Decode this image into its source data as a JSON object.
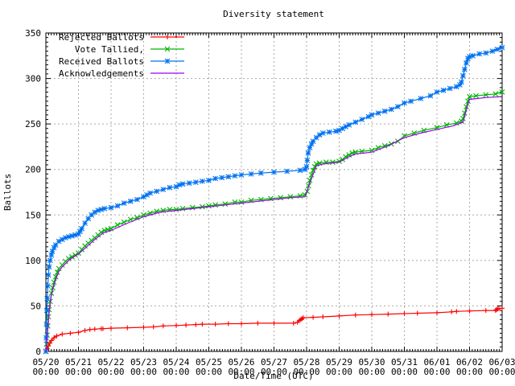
{
  "title": "Diversity statement",
  "chart_data": {
    "type": "line",
    "title": "Diversity statement",
    "xlabel": "Date/Time (UTC)",
    "ylabel": "Ballots",
    "ylim": [
      0,
      350
    ],
    "y_ticks": [
      0,
      50,
      100,
      150,
      200,
      250,
      300,
      350
    ],
    "x_range_days": [
      0,
      14
    ],
    "x_ticks": [
      {
        "date": "05/20",
        "time": "00:00"
      },
      {
        "date": "05/21",
        "time": "00:00"
      },
      {
        "date": "05/22",
        "time": "00:00"
      },
      {
        "date": "05/23",
        "time": "00:00"
      },
      {
        "date": "05/24",
        "time": "00:00"
      },
      {
        "date": "05/25",
        "time": "00:00"
      },
      {
        "date": "05/26",
        "time": "00:00"
      },
      {
        "date": "05/27",
        "time": "00:00"
      },
      {
        "date": "05/28",
        "time": "00:00"
      },
      {
        "date": "05/29",
        "time": "00:00"
      },
      {
        "date": "05/30",
        "time": "00:00"
      },
      {
        "date": "05/31",
        "time": "00:00"
      },
      {
        "date": "06/01",
        "time": "00:00"
      },
      {
        "date": "06/02",
        "time": "00:00"
      },
      {
        "date": "06/03",
        "time": "00:00"
      }
    ],
    "grid": true,
    "legend_position": "top-left",
    "colors": {
      "grid": "#aaaaaa",
      "axis": "#000000"
    },
    "series": [
      {
        "name": "Rejected Ballots",
        "color": "#ff0000",
        "marker": "plus",
        "points": [
          [
            0,
            0
          ],
          [
            0.04,
            3
          ],
          [
            0.08,
            6
          ],
          [
            0.12,
            9
          ],
          [
            0.17,
            12
          ],
          [
            0.25,
            15
          ],
          [
            0.33,
            17
          ],
          [
            0.5,
            19
          ],
          [
            0.75,
            20
          ],
          [
            1.0,
            21
          ],
          [
            1.2,
            23
          ],
          [
            1.35,
            24
          ],
          [
            1.5,
            24.5
          ],
          [
            1.7,
            25
          ],
          [
            1.75,
            25
          ],
          [
            2.0,
            25.5
          ],
          [
            2.5,
            26
          ],
          [
            3.0,
            26.5
          ],
          [
            3.3,
            27
          ],
          [
            3.6,
            28
          ],
          [
            4.0,
            28.5
          ],
          [
            4.3,
            29
          ],
          [
            4.6,
            29.5
          ],
          [
            4.8,
            30
          ],
          [
            5.2,
            30
          ],
          [
            5.6,
            30.5
          ],
          [
            6.0,
            30.5
          ],
          [
            6.5,
            31
          ],
          [
            7.0,
            31
          ],
          [
            7.6,
            31
          ],
          [
            7.72,
            32
          ],
          [
            7.78,
            34
          ],
          [
            7.82,
            35
          ],
          [
            7.86,
            36
          ],
          [
            7.9,
            37
          ],
          [
            8.2,
            37.5
          ],
          [
            8.5,
            38
          ],
          [
            9.0,
            39
          ],
          [
            9.5,
            40
          ],
          [
            10.0,
            40.5
          ],
          [
            10.5,
            41
          ],
          [
            11.0,
            41.5
          ],
          [
            11.4,
            42
          ],
          [
            12.0,
            42.5
          ],
          [
            12.45,
            43.5
          ],
          [
            12.6,
            44
          ],
          [
            13.0,
            44.5
          ],
          [
            13.5,
            45
          ],
          [
            13.8,
            45
          ],
          [
            13.82,
            46
          ],
          [
            13.86,
            46.5
          ],
          [
            13.9,
            47
          ],
          [
            14.0,
            47.5
          ]
        ]
      },
      {
        "name": "Vote Tallied,",
        "color": "#00b400",
        "marker": "cross",
        "points": [
          [
            0,
            0
          ],
          [
            0.02,
            8
          ],
          [
            0.04,
            18
          ],
          [
            0.06,
            28
          ],
          [
            0.08,
            38
          ],
          [
            0.1,
            46
          ],
          [
            0.13,
            55
          ],
          [
            0.17,
            64
          ],
          [
            0.21,
            70
          ],
          [
            0.25,
            76
          ],
          [
            0.3,
            82
          ],
          [
            0.35,
            87
          ],
          [
            0.4,
            91
          ],
          [
            0.5,
            95
          ],
          [
            0.6,
            99
          ],
          [
            0.7,
            102
          ],
          [
            0.8,
            104
          ],
          [
            0.9,
            106
          ],
          [
            1.0,
            108
          ],
          [
            1.1,
            112
          ],
          [
            1.2,
            116
          ],
          [
            1.3,
            119
          ],
          [
            1.4,
            122
          ],
          [
            1.5,
            125
          ],
          [
            1.6,
            128
          ],
          [
            1.7,
            131
          ],
          [
            1.8,
            133
          ],
          [
            1.9,
            134
          ],
          [
            2.0,
            135
          ],
          [
            2.2,
            139
          ],
          [
            2.4,
            142
          ],
          [
            2.6,
            145
          ],
          [
            2.8,
            147
          ],
          [
            3.0,
            150
          ],
          [
            3.2,
            152
          ],
          [
            3.4,
            154
          ],
          [
            3.6,
            155
          ],
          [
            3.8,
            156
          ],
          [
            4.0,
            156
          ],
          [
            4.2,
            157
          ],
          [
            4.5,
            158
          ],
          [
            4.8,
            159
          ],
          [
            5.0,
            160
          ],
          [
            5.2,
            161
          ],
          [
            5.5,
            162
          ],
          [
            5.8,
            164
          ],
          [
            6.0,
            164
          ],
          [
            6.3,
            166
          ],
          [
            6.6,
            167
          ],
          [
            6.9,
            168
          ],
          [
            7.2,
            169
          ],
          [
            7.5,
            170
          ],
          [
            7.8,
            171
          ],
          [
            7.95,
            172
          ],
          [
            8.02,
            176
          ],
          [
            8.06,
            182
          ],
          [
            8.1,
            188
          ],
          [
            8.15,
            194
          ],
          [
            8.2,
            199
          ],
          [
            8.25,
            203
          ],
          [
            8.3,
            206
          ],
          [
            8.4,
            207
          ],
          [
            8.6,
            208
          ],
          [
            8.8,
            208
          ],
          [
            9.0,
            209
          ],
          [
            9.1,
            211
          ],
          [
            9.2,
            214
          ],
          [
            9.3,
            216
          ],
          [
            9.4,
            218
          ],
          [
            9.5,
            219
          ],
          [
            9.7,
            220
          ],
          [
            10.0,
            221
          ],
          [
            10.2,
            224
          ],
          [
            10.4,
            226
          ],
          [
            10.6,
            228
          ],
          [
            10.8,
            231
          ],
          [
            11.0,
            237
          ],
          [
            11.3,
            240
          ],
          [
            11.6,
            243
          ],
          [
            12.0,
            246
          ],
          [
            12.3,
            249
          ],
          [
            12.6,
            251
          ],
          [
            12.75,
            253
          ],
          [
            12.8,
            256
          ],
          [
            12.85,
            262
          ],
          [
            12.9,
            269
          ],
          [
            12.95,
            275
          ],
          [
            13.0,
            280
          ],
          [
            13.2,
            281
          ],
          [
            13.5,
            282
          ],
          [
            13.8,
            283
          ],
          [
            14.0,
            285
          ]
        ]
      },
      {
        "name": "Received Ballots",
        "color": "#0072f0",
        "marker": "star",
        "points": [
          [
            0,
            0
          ],
          [
            0.01,
            15
          ],
          [
            0.02,
            30
          ],
          [
            0.03,
            45
          ],
          [
            0.04,
            58
          ],
          [
            0.06,
            72
          ],
          [
            0.08,
            84
          ],
          [
            0.1,
            93
          ],
          [
            0.13,
            100
          ],
          [
            0.17,
            106
          ],
          [
            0.2,
            110
          ],
          [
            0.25,
            114
          ],
          [
            0.3,
            117
          ],
          [
            0.4,
            121
          ],
          [
            0.5,
            123
          ],
          [
            0.6,
            125
          ],
          [
            0.7,
            126
          ],
          [
            0.8,
            127
          ],
          [
            0.9,
            128
          ],
          [
            1.0,
            129
          ],
          [
            1.05,
            132
          ],
          [
            1.1,
            135
          ],
          [
            1.2,
            141
          ],
          [
            1.3,
            146
          ],
          [
            1.4,
            150
          ],
          [
            1.5,
            153
          ],
          [
            1.6,
            155
          ],
          [
            1.7,
            156
          ],
          [
            1.8,
            157
          ],
          [
            2.0,
            158
          ],
          [
            2.2,
            160
          ],
          [
            2.4,
            163
          ],
          [
            2.6,
            165
          ],
          [
            2.8,
            167
          ],
          [
            3.0,
            170
          ],
          [
            3.1,
            172
          ],
          [
            3.2,
            174
          ],
          [
            3.4,
            176
          ],
          [
            3.6,
            178
          ],
          [
            3.8,
            180
          ],
          [
            4.0,
            181
          ],
          [
            4.1,
            183
          ],
          [
            4.2,
            184
          ],
          [
            4.4,
            185
          ],
          [
            4.6,
            186
          ],
          [
            4.8,
            187
          ],
          [
            5.0,
            188
          ],
          [
            5.2,
            190
          ],
          [
            5.4,
            191
          ],
          [
            5.6,
            192
          ],
          [
            5.8,
            193
          ],
          [
            6.0,
            194
          ],
          [
            6.3,
            195
          ],
          [
            6.6,
            196
          ],
          [
            7.0,
            197
          ],
          [
            7.4,
            198
          ],
          [
            7.8,
            199
          ],
          [
            7.95,
            200
          ],
          [
            8.0,
            203
          ],
          [
            8.02,
            210
          ],
          [
            8.05,
            218
          ],
          [
            8.1,
            224
          ],
          [
            8.15,
            228
          ],
          [
            8.2,
            231
          ],
          [
            8.3,
            235
          ],
          [
            8.4,
            238
          ],
          [
            8.5,
            240
          ],
          [
            8.7,
            241
          ],
          [
            8.9,
            242
          ],
          [
            9.0,
            243
          ],
          [
            9.1,
            245
          ],
          [
            9.2,
            247
          ],
          [
            9.3,
            249
          ],
          [
            9.5,
            252
          ],
          [
            9.7,
            255
          ],
          [
            9.9,
            258
          ],
          [
            10.0,
            260
          ],
          [
            10.2,
            262
          ],
          [
            10.4,
            264
          ],
          [
            10.6,
            266
          ],
          [
            10.8,
            269
          ],
          [
            11.0,
            273
          ],
          [
            11.2,
            275
          ],
          [
            11.5,
            278
          ],
          [
            11.8,
            281
          ],
          [
            12.0,
            285
          ],
          [
            12.2,
            287
          ],
          [
            12.4,
            289
          ],
          [
            12.6,
            291
          ],
          [
            12.7,
            293
          ],
          [
            12.75,
            296
          ],
          [
            12.8,
            303
          ],
          [
            12.85,
            310
          ],
          [
            12.9,
            317
          ],
          [
            12.95,
            322
          ],
          [
            13.0,
            324
          ],
          [
            13.1,
            325
          ],
          [
            13.3,
            327
          ],
          [
            13.5,
            328
          ],
          [
            13.7,
            330
          ],
          [
            13.85,
            332
          ],
          [
            14.0,
            334
          ]
        ]
      },
      {
        "name": "Acknowledgements",
        "color": "#a000f0",
        "marker": "none",
        "points": [
          [
            0,
            0
          ],
          [
            0.05,
            20
          ],
          [
            0.1,
            42
          ],
          [
            0.15,
            58
          ],
          [
            0.2,
            67
          ],
          [
            0.3,
            79
          ],
          [
            0.4,
            88
          ],
          [
            0.5,
            93
          ],
          [
            0.7,
            100
          ],
          [
            0.9,
            105
          ],
          [
            1.0,
            107
          ],
          [
            1.25,
            115
          ],
          [
            1.5,
            123
          ],
          [
            1.75,
            130
          ],
          [
            2.0,
            133
          ],
          [
            2.5,
            141
          ],
          [
            3.0,
            148
          ],
          [
            3.5,
            153
          ],
          [
            4.0,
            155
          ],
          [
            4.5,
            157
          ],
          [
            5.0,
            159
          ],
          [
            5.5,
            161
          ],
          [
            6.0,
            163
          ],
          [
            6.5,
            165
          ],
          [
            7.0,
            167
          ],
          [
            7.5,
            169
          ],
          [
            7.95,
            170
          ],
          [
            8.1,
            185
          ],
          [
            8.3,
            204
          ],
          [
            8.5,
            206
          ],
          [
            9.0,
            208
          ],
          [
            9.3,
            214
          ],
          [
            9.5,
            217
          ],
          [
            10.0,
            219
          ],
          [
            10.5,
            226
          ],
          [
            11.0,
            235
          ],
          [
            11.5,
            240
          ],
          [
            12.0,
            244
          ],
          [
            12.5,
            248
          ],
          [
            12.8,
            252
          ],
          [
            12.95,
            272
          ],
          [
            13.0,
            277
          ],
          [
            13.5,
            279
          ],
          [
            14.0,
            280
          ]
        ]
      }
    ]
  }
}
